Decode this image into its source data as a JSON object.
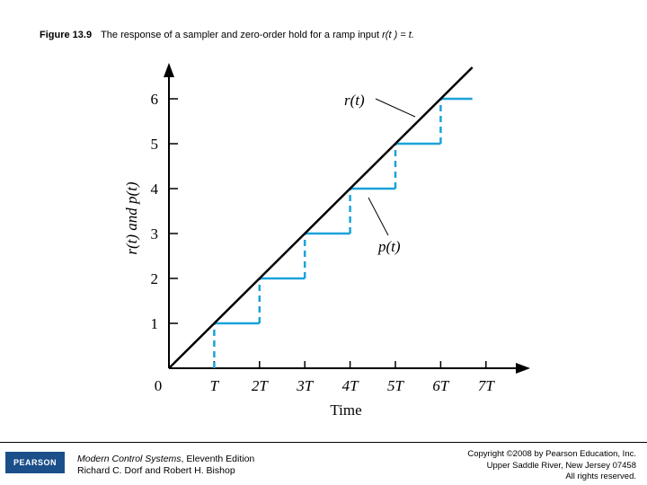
{
  "caption": {
    "figure_label": "Figure 13.9",
    "text_prefix": "The response of a sampler and zero-order hold for a ramp input ",
    "text_math": "r(t ) = t.",
    "text_suffix": ""
  },
  "chart_data": {
    "type": "line",
    "xlabel": "Time",
    "ylabel": "r(t) and p(t)",
    "x_tick_labels": [
      "0",
      "T",
      "2T",
      "3T",
      "4T",
      "5T",
      "6T",
      "7T"
    ],
    "y_tick_labels": [
      "1",
      "2",
      "3",
      "4",
      "5",
      "6"
    ],
    "xlim": [
      0,
      7.6
    ],
    "ylim": [
      0,
      6.8
    ],
    "series": [
      {
        "name": "r(t)",
        "label": "r(t)",
        "style": "solid",
        "color": "#000000",
        "x": [
          0,
          6.7
        ],
        "y": [
          0,
          6.7
        ]
      },
      {
        "name": "p(t)",
        "label": "p(t)",
        "style": "dashed",
        "color": "#1aa3d9",
        "steps": [
          {
            "t_start": 1,
            "t_end": 2,
            "value": 1
          },
          {
            "t_start": 2,
            "t_end": 3,
            "value": 2
          },
          {
            "t_start": 3,
            "t_end": 4,
            "value": 3
          },
          {
            "t_start": 4,
            "t_end": 5,
            "value": 4
          },
          {
            "t_start": 5,
            "t_end": 6,
            "value": 5
          },
          {
            "t_start": 6,
            "t_end": 6.7,
            "value": 6
          }
        ]
      }
    ],
    "grid": false
  },
  "footer": {
    "logo": "PEARSON",
    "book_title": "Modern Control Systems",
    "book_edition": ", Eleventh Edition",
    "authors": "Richard C. Dorf and Robert H. Bishop",
    "copyright_line1": "Copyright ©2008 by Pearson Education, Inc.",
    "copyright_line2": "Upper Saddle River, New Jersey 07458",
    "copyright_line3": "All rights reserved."
  },
  "colors": {
    "ramp": "#000000",
    "hold": "#1aa3d9",
    "axis": "#000000",
    "logo_bg": "#1b4f8a"
  }
}
